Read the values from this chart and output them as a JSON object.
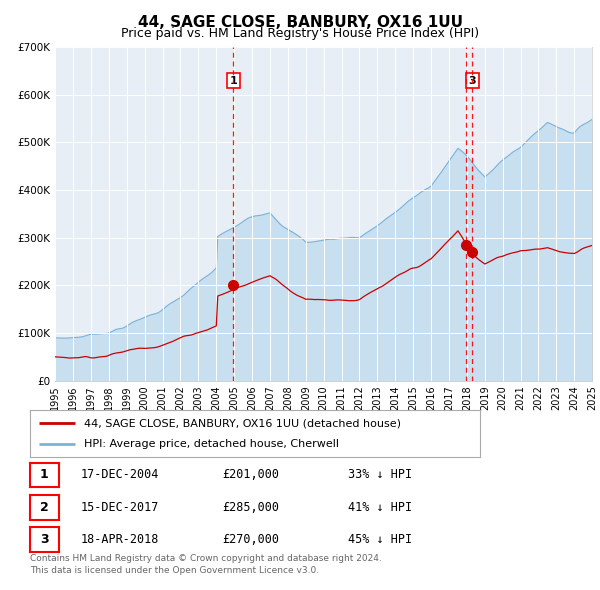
{
  "title": "44, SAGE CLOSE, BANBURY, OX16 1UU",
  "subtitle": "Price paid vs. HM Land Registry's House Price Index (HPI)",
  "hpi_color": "#7ab3d9",
  "hpi_fill_color": "#c8dff0",
  "price_color": "#cc0000",
  "plot_bg_color": "#e8eef5",
  "ylim": [
    0,
    700000
  ],
  "yticks": [
    0,
    100000,
    200000,
    300000,
    400000,
    500000,
    600000,
    700000
  ],
  "ytick_labels": [
    "£0",
    "£100K",
    "£200K",
    "£300K",
    "£400K",
    "£500K",
    "£600K",
    "£700K"
  ],
  "sale1_date": 2004.96,
  "sale1_price": 201000,
  "sale1_label": "1",
  "sale2_date": 2017.96,
  "sale2_price": 285000,
  "sale2_label": "2",
  "sale3_date": 2018.29,
  "sale3_price": 270000,
  "sale3_label": "3",
  "legend_line1": "44, SAGE CLOSE, BANBURY, OX16 1UU (detached house)",
  "legend_line2": "HPI: Average price, detached house, Cherwell",
  "table_rows": [
    {
      "num": "1",
      "date": "17-DEC-2004",
      "price": "£201,000",
      "hpi": "33% ↓ HPI"
    },
    {
      "num": "2",
      "date": "15-DEC-2017",
      "price": "£285,000",
      "hpi": "41% ↓ HPI"
    },
    {
      "num": "3",
      "date": "18-APR-2018",
      "price": "£270,000",
      "hpi": "45% ↓ HPI"
    }
  ],
  "footer": "Contains HM Land Registry data © Crown copyright and database right 2024.\nThis data is licensed under the Open Government Licence v3.0.",
  "xmin": 1995,
  "xmax": 2025
}
